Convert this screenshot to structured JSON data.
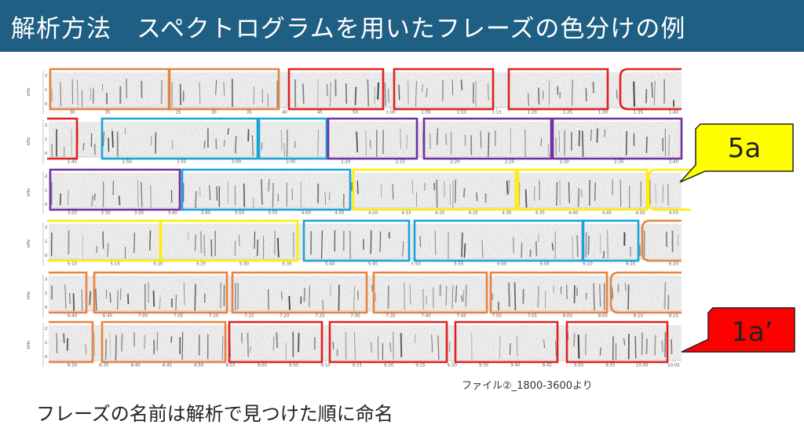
{
  "title": "解析方法　スペクトログラムを用いたフレーズの色分けの例",
  "source_note": "ファイル②_1800-3600より",
  "footer": "フレーズの名前は解析で見つけた順に命名",
  "callouts": {
    "top": {
      "label": "5a",
      "fill": "#ffff00"
    },
    "bottom": {
      "label": "1a’",
      "fill": "#ff0000"
    }
  },
  "phrase_colors": {
    "orange": "#e8823f",
    "red": "#e02020",
    "blue": "#1aa3d8",
    "purple": "#7030a0",
    "yellow": "#ffee00"
  },
  "spectrogram_rows": [
    {
      "ticks": [
        "30",
        "35",
        "",
        "25",
        "30",
        "35",
        "40",
        "45",
        "50",
        "1:00",
        "1:05",
        "1:10",
        "1:15",
        "1:20",
        "1:25",
        "1:30",
        "1:35",
        "1:40"
      ]
    },
    {
      "ticks": [
        "1:45",
        "1:50",
        "1:55",
        "2:00",
        "2:05",
        "2:10",
        "2:15",
        "2:20",
        "2:25",
        "2:30",
        "2:35",
        "2:40"
      ]
    },
    {
      "ticks": [
        "3:25",
        "3:30",
        "3:35",
        "3:40",
        "3:45",
        "3:50",
        "3:55",
        "4:00",
        "4:05",
        "4:10",
        "4:15",
        "4:20",
        "4:25",
        "4:30",
        "4:35",
        "4:40",
        "4:45",
        "4:50",
        "4:55"
      ]
    },
    {
      "ticks": [
        "5:10",
        "5:15",
        "5:20",
        "5:25",
        "5:30",
        "5:35",
        "5:40",
        "5:45",
        "5:50",
        "5:55",
        "6:00",
        "6:05",
        "6:10",
        "6:15",
        "6:20"
      ]
    },
    {
      "ticks": [
        "6:40",
        "6:45",
        "7:00",
        "7:05",
        "7:10",
        "7:15",
        "7:20",
        "7:25",
        "7:30",
        "7:35",
        "7:40",
        "7:45",
        "7:50",
        "7:55",
        "8:00",
        "8:05",
        "8:10",
        "8:15"
      ]
    },
    {
      "ticks": [
        "8:30",
        "8:35",
        "8:40",
        "8:45",
        "8:50",
        "8:55",
        "9:00",
        "9:05",
        "9:10",
        "9:15",
        "9:20",
        "9:25",
        "9:30",
        "9:35",
        "9:40",
        "9:45",
        "9:50",
        "9:55",
        "10:00",
        "10:05"
      ]
    }
  ]
}
